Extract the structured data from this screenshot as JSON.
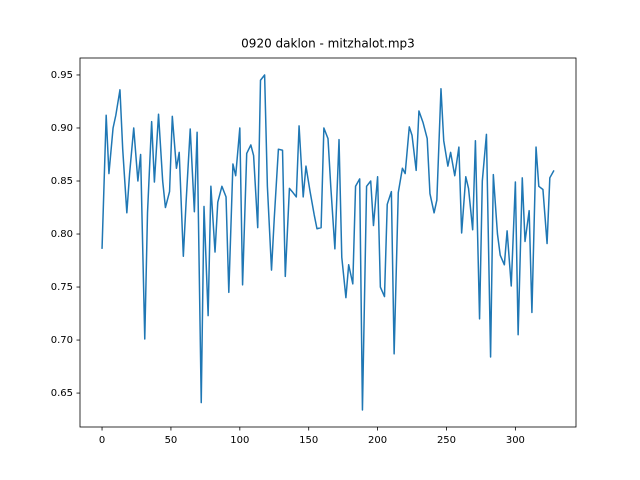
{
  "chart_data": {
    "type": "line",
    "title": "0920 daklon - mitzhalot.mp3",
    "color": "#1f77b4",
    "x": [
      0,
      3,
      5,
      8,
      10,
      13,
      15,
      18,
      20,
      23,
      26,
      28,
      31,
      33,
      36,
      38,
      41,
      44,
      46,
      49,
      51,
      54,
      56,
      59,
      61,
      64,
      67,
      69,
      72,
      74,
      77,
      79,
      82,
      84,
      87,
      90,
      92,
      95,
      97,
      100,
      102,
      105,
      108,
      110,
      113,
      115,
      118,
      120,
      123,
      125,
      128,
      131,
      133,
      136,
      138,
      141,
      143,
      146,
      148,
      151,
      154,
      156,
      159,
      161,
      164,
      166,
      169,
      172,
      174,
      177,
      179,
      182,
      184,
      187,
      189,
      192,
      195,
      197,
      200,
      202,
      205,
      207,
      210,
      212,
      215,
      218,
      220,
      223,
      225,
      228,
      230,
      233,
      236,
      238,
      241,
      243,
      246,
      248,
      251,
      253,
      256,
      259,
      261,
      264,
      266,
      269,
      271,
      274,
      276,
      279,
      282,
      284,
      287,
      289,
      292,
      294,
      297,
      300,
      302,
      305,
      307,
      310,
      312,
      315,
      317,
      320,
      323,
      325,
      328
    ],
    "values": [
      0.786,
      0.912,
      0.857,
      0.9,
      0.912,
      0.936,
      0.88,
      0.82,
      0.857,
      0.9,
      0.85,
      0.875,
      0.701,
      0.82,
      0.906,
      0.849,
      0.913,
      0.85,
      0.825,
      0.84,
      0.911,
      0.862,
      0.877,
      0.779,
      0.83,
      0.899,
      0.821,
      0.896,
      0.641,
      0.826,
      0.723,
      0.845,
      0.783,
      0.83,
      0.845,
      0.835,
      0.745,
      0.866,
      0.855,
      0.9,
      0.752,
      0.876,
      0.884,
      0.874,
      0.806,
      0.945,
      0.95,
      0.845,
      0.766,
      0.815,
      0.88,
      0.879,
      0.76,
      0.843,
      0.84,
      0.835,
      0.902,
      0.835,
      0.864,
      0.84,
      0.818,
      0.805,
      0.806,
      0.9,
      0.89,
      0.845,
      0.786,
      0.889,
      0.778,
      0.74,
      0.771,
      0.753,
      0.845,
      0.852,
      0.634,
      0.845,
      0.85,
      0.808,
      0.854,
      0.75,
      0.741,
      0.828,
      0.84,
      0.687,
      0.839,
      0.862,
      0.857,
      0.901,
      0.893,
      0.86,
      0.916,
      0.905,
      0.89,
      0.838,
      0.82,
      0.832,
      0.937,
      0.888,
      0.864,
      0.877,
      0.855,
      0.882,
      0.801,
      0.854,
      0.843,
      0.804,
      0.888,
      0.72,
      0.85,
      0.894,
      0.684,
      0.856,
      0.8,
      0.78,
      0.771,
      0.803,
      0.751,
      0.849,
      0.705,
      0.853,
      0.793,
      0.822,
      0.726,
      0.882,
      0.845,
      0.842,
      0.791,
      0.853,
      0.86
    ],
    "xlim": [
      -16,
      344
    ],
    "ylim": [
      0.618,
      0.966
    ],
    "xticks": [
      0,
      50,
      100,
      150,
      200,
      250,
      300
    ],
    "yticks": [
      0.65,
      {
        "value": 0.7,
        "label": "0.70"
      },
      0.75,
      {
        "value": 0.8,
        "label": "0.80"
      },
      0.85,
      {
        "value": 0.9,
        "label": "0.90"
      },
      0.95
    ]
  }
}
